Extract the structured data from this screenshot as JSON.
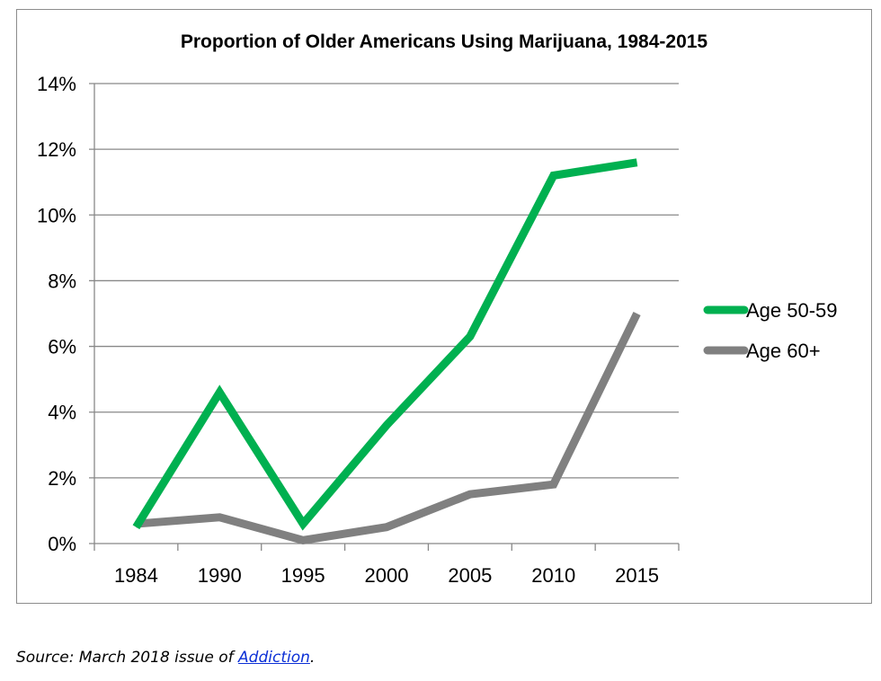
{
  "chart_data": {
    "type": "line",
    "title": "Proportion of Older Americans Using Marijuana, 1984-2015",
    "xlabel": "",
    "ylabel": "",
    "categories": [
      "1984",
      "1990",
      "1995",
      "2000",
      "2005",
      "2010",
      "2015"
    ],
    "ylim": [
      0,
      14
    ],
    "yticks": [
      "0%",
      "2%",
      "4%",
      "6%",
      "8%",
      "10%",
      "12%",
      "14%"
    ],
    "grid": true,
    "legend_position": "right",
    "series": [
      {
        "name": "Age 50-59",
        "color": "#00b050",
        "values": [
          0.5,
          4.6,
          0.6,
          3.6,
          6.3,
          11.2,
          11.6
        ]
      },
      {
        "name": "Age 60+",
        "color": "#808080",
        "values": [
          0.6,
          0.8,
          0.1,
          0.5,
          1.5,
          1.8,
          7.0
        ]
      }
    ]
  },
  "source": {
    "prefix": "Source: March 2018 issue of ",
    "link": "Addiction",
    "suffix": "."
  }
}
